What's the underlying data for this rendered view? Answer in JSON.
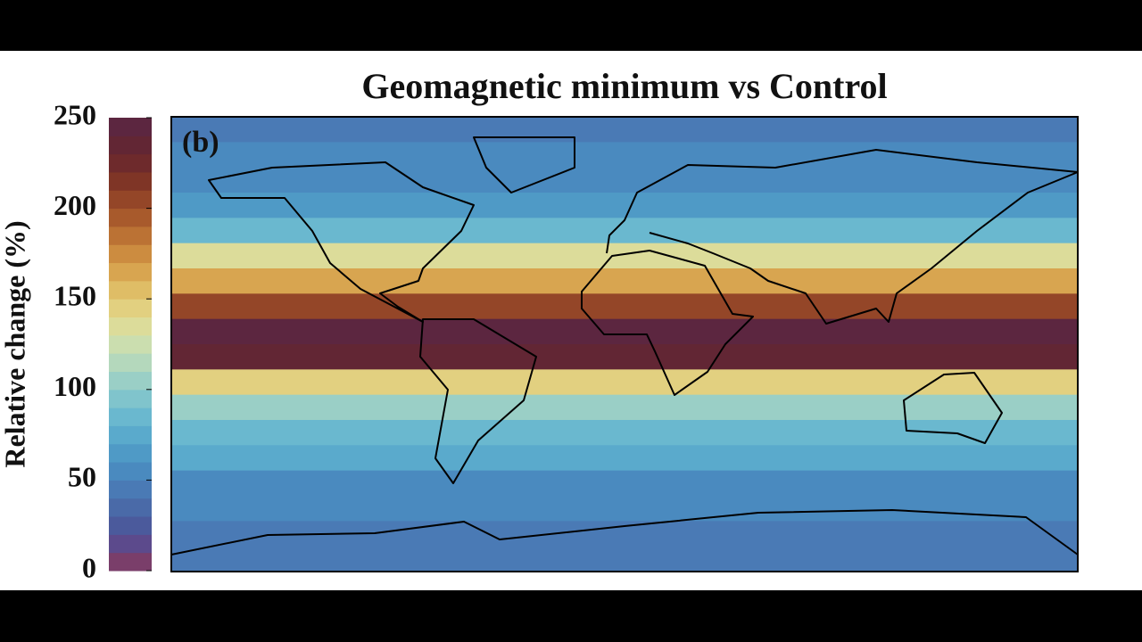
{
  "chart_data": {
    "type": "heatmap",
    "title": "Geomagnetic minimum vs Control",
    "panel_label": "(b)",
    "values": [
      45,
      50,
      55,
      65,
      80,
      135,
      165,
      205,
      245,
      235,
      140,
      105,
      85,
      70,
      58,
      50,
      47,
      45
    ],
    "colorbar": {
      "label": "Relative change (%)",
      "lim": [
        0,
        250
      ],
      "ticks": [
        0,
        50,
        100,
        150,
        200,
        250
      ],
      "colors": [
        "#7a3e6a",
        "#5c4a8c",
        "#4b5a9c",
        "#4a6aa8",
        "#4a7ab5",
        "#4a8abf",
        "#4f9ac6",
        "#5aaacc",
        "#6ab8cf",
        "#80c4cc",
        "#9acfc6",
        "#b4d8bc",
        "#cbdeaf",
        "#dcdc9a",
        "#e2d080",
        "#dfbd66",
        "#d8a550",
        "#cc8c40",
        "#bb7234",
        "#a85a2c",
        "#944628",
        "#7f3526",
        "#6e2a2c",
        "#622634",
        "#5c2640"
      ]
    }
  }
}
